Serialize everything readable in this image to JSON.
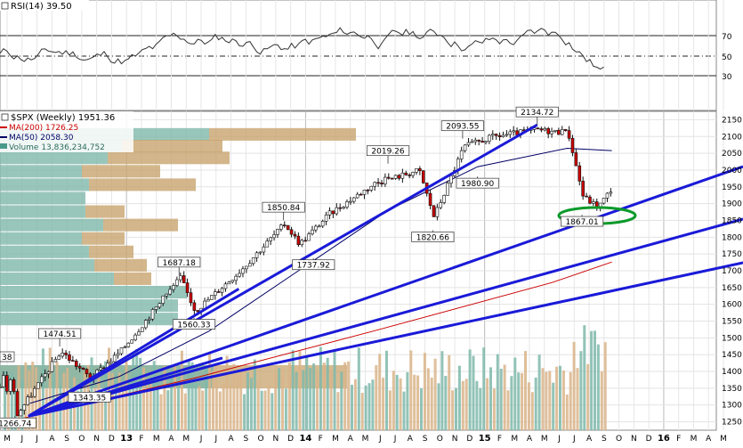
{
  "rsi": {
    "title": "RSI(14) 39.50",
    "levels": [
      "70",
      "50",
      "30"
    ],
    "y_ticks": [
      "70",
      "50",
      "30"
    ]
  },
  "main": {
    "title": "$SPX (Weekly) 1951.36",
    "legend": [
      {
        "label": "MA(200) 1726.25",
        "color": "#cc0000"
      },
      {
        "label": "MA(50) 2058.30",
        "color": "#000066"
      },
      {
        "label": "Volume 13,836,234,752",
        "color": "#4a9a8a"
      }
    ],
    "y_ticks": [
      "2150",
      "2100",
      "2050",
      "2000",
      "1950",
      "1900",
      "1850",
      "1800",
      "1750",
      "1700",
      "1650",
      "1600",
      "1550",
      "1500",
      "1450",
      "1400",
      "1350",
      "1300",
      "1250"
    ],
    "ylim": [
      1225,
      2175
    ],
    "annotations": [
      "2134.72",
      "2093.55",
      "2019.26",
      "1980.90",
      "1850.84",
      "1820.66",
      "1737.92",
      "1687.18",
      "1560.33",
      "1474.51",
      "1343.35",
      "1266.74",
      "1867.01",
      "38"
    ]
  },
  "x_axis": {
    "labels": [
      "M",
      "J",
      "J",
      "A",
      "S",
      "O",
      "N",
      "D",
      "13",
      "F",
      "M",
      "A",
      "M",
      "J",
      "J",
      "A",
      "S",
      "O",
      "N",
      "D",
      "14",
      "F",
      "M",
      "A",
      "M",
      "J",
      "J",
      "A",
      "S",
      "O",
      "N",
      "D",
      "15",
      "F",
      "M",
      "A",
      "M",
      "J",
      "J",
      "A",
      "S",
      "O",
      "N",
      "D",
      "16",
      "F",
      "M",
      "A",
      "M"
    ]
  },
  "chart_data": {
    "type": "candlestick",
    "title": "$SPX (Weekly) 1951.36",
    "x_range": [
      "2012-05",
      "2016-05"
    ],
    "ylim": [
      1225,
      2175
    ],
    "series": [
      {
        "name": "MA(200) 1726.25",
        "x": [
          "2012-06",
          "2013-06",
          "2014-06",
          "2015-06",
          "2015-10"
        ],
        "values": [
          1255,
          1380,
          1520,
          1665,
          1726
        ]
      },
      {
        "name": "MA(50) 2058.30",
        "x": [
          "2012-07",
          "2013-01",
          "2013-07",
          "2014-01",
          "2014-07",
          "2015-01",
          "2015-07",
          "2015-10"
        ],
        "values": [
          1305,
          1385,
          1520,
          1700,
          1880,
          2010,
          2065,
          2058
        ]
      }
    ],
    "price_close": {
      "x": [
        "2012-06",
        "2012-09",
        "2012-11",
        "2013-01",
        "2013-05",
        "2013-06",
        "2013-09",
        "2013-12",
        "2014-01",
        "2014-03",
        "2014-06",
        "2014-09",
        "2014-10",
        "2014-12",
        "2015-02",
        "2015-05",
        "2015-07",
        "2015-08",
        "2015-09",
        "2015-10"
      ],
      "values": [
        1267,
        1460,
        1380,
        1460,
        1680,
        1580,
        1700,
        1840,
        1780,
        1870,
        1960,
        2000,
        1860,
        2070,
        2100,
        2120,
        2110,
        1920,
        1890,
        1951
      ]
    },
    "point_labels": [
      {
        "x": "2012-06",
        "value": 1266.74
      },
      {
        "x": "2012-09",
        "value": 1474.51
      },
      {
        "x": "2012-11",
        "value": 1343.35
      },
      {
        "x": "2013-05",
        "value": 1687.18
      },
      {
        "x": "2013-06",
        "value": 1560.33
      },
      {
        "x": "2013-12",
        "value": 1850.84
      },
      {
        "x": "2014-02",
        "value": 1737.92
      },
      {
        "x": "2014-07",
        "value": 2019.26
      },
      {
        "x": "2014-10",
        "value": 1820.66
      },
      {
        "x": "2014-12",
        "value": 2093.55
      },
      {
        "x": "2015-01",
        "value": 1980.9
      },
      {
        "x": "2015-05",
        "value": 2134.72
      },
      {
        "x": "2015-08",
        "value": 1867.01
      }
    ],
    "legend": [
      "MA(200) 1726.25",
      "MA(50) 2058.30",
      "Volume 13,836,234,752"
    ],
    "rsi": {
      "current": 39.5,
      "levels": [
        70,
        50,
        30
      ]
    }
  }
}
